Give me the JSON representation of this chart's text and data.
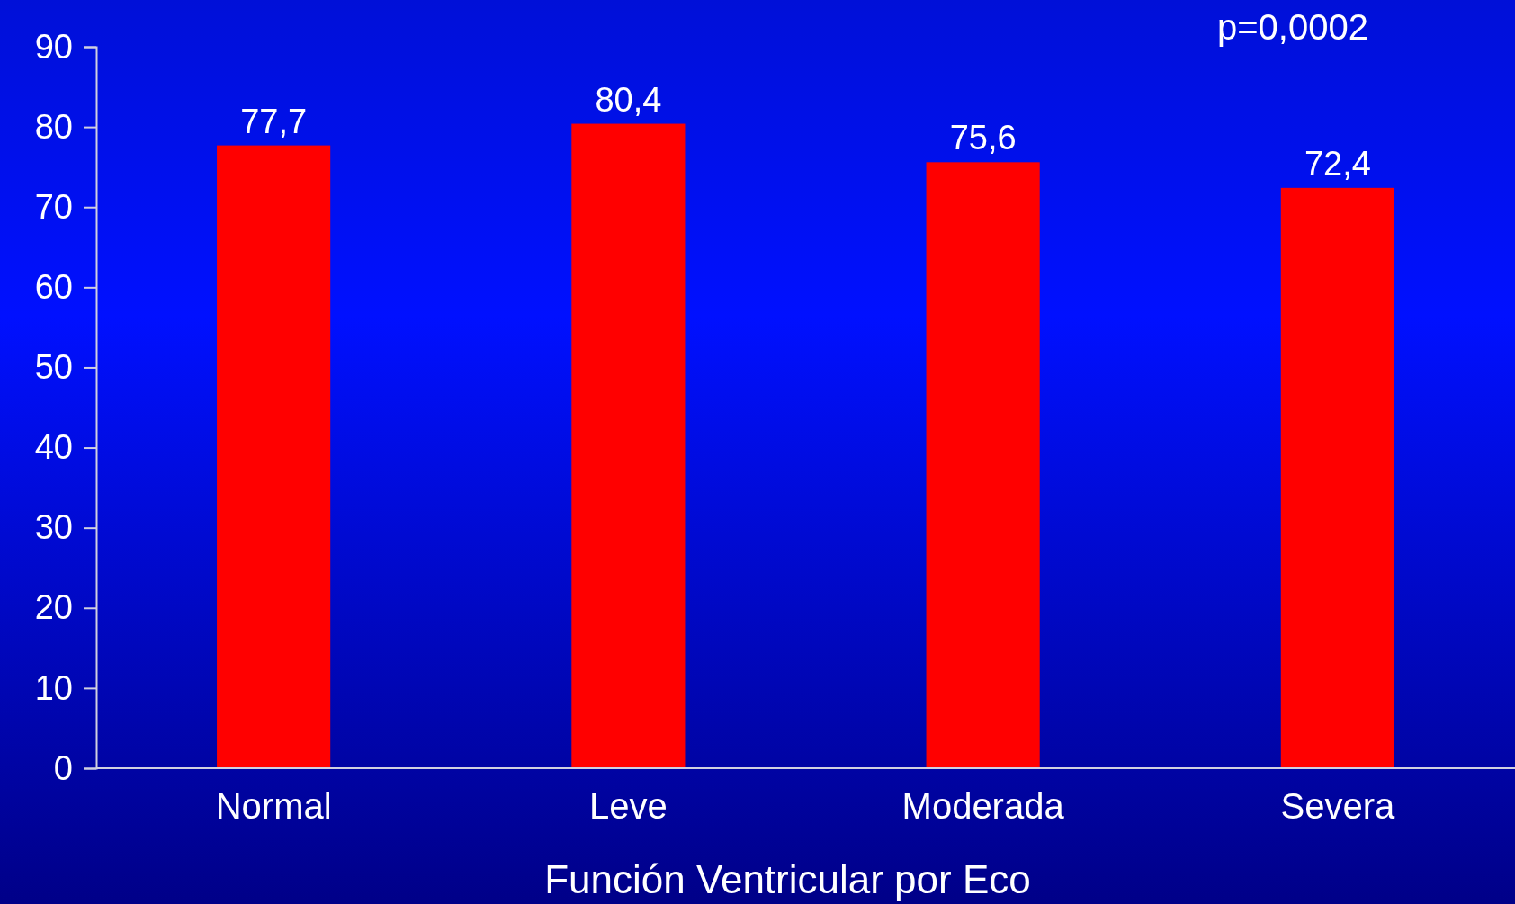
{
  "chart_data": {
    "type": "bar",
    "xlabel": "Función Ventricular por Eco",
    "categories": [
      "Normal",
      "Leve",
      "Moderada",
      "Severa"
    ],
    "values": [
      77.7,
      80.4,
      75.6,
      72.4
    ],
    "color": "#ff0000",
    "value_labels": [
      "77,7",
      "80,4",
      "75,6",
      "72,4"
    ],
    "ylim": [
      0,
      90
    ],
    "yticks": [
      0,
      10,
      20,
      30,
      40,
      50,
      60,
      70,
      80,
      90
    ],
    "grid": false,
    "annotations": [
      "p=0,0002"
    ]
  }
}
